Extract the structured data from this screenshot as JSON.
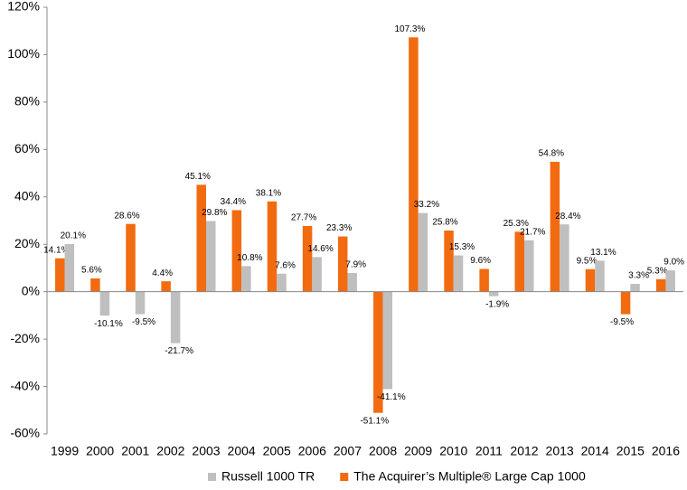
{
  "chart_data": {
    "type": "bar",
    "categories": [
      "1999",
      "2000",
      "2001",
      "2002",
      "2003",
      "2004",
      "2005",
      "2006",
      "2007",
      "2008",
      "2009",
      "2010",
      "2011",
      "2012",
      "2013",
      "2014",
      "2015",
      "2016"
    ],
    "series": [
      {
        "name": "The Acquirer’s Multiple® Large Cap 1000",
        "color": "#f26b10",
        "values": [
          14.1,
          5.6,
          28.6,
          4.4,
          45.1,
          34.4,
          38.1,
          27.7,
          23.3,
          -51.1,
          107.3,
          25.8,
          9.6,
          25.3,
          54.8,
          9.5,
          -9.5,
          5.3
        ],
        "value_labels": [
          "14.1%",
          "5.6%",
          "28.6%",
          "4.4%",
          "45.1%",
          "34.4%",
          "38.1%",
          "27.7%",
          "23.3%",
          "-51.1%",
          "107.3%",
          "25.8%",
          "9.6%",
          "25.3%",
          "54.8%",
          "9.5%",
          "-9.5%",
          "5.3%"
        ]
      },
      {
        "name": "Russell 1000 TR",
        "color": "#bfbfbf",
        "values": [
          20.1,
          -10.1,
          -9.5,
          -21.7,
          29.8,
          10.8,
          7.6,
          14.6,
          7.9,
          -41.1,
          33.2,
          15.3,
          -1.9,
          21.7,
          28.4,
          13.1,
          3.3,
          9.0
        ],
        "value_labels": [
          "20.1%",
          "-10.1%",
          "-9.5%",
          "-21.7%",
          "29.8%",
          "10.8%",
          "7.6%",
          "14.6%",
          "7.9%",
          "-41.1%",
          "33.2%",
          "15.3%",
          "-1.9%",
          "21.7%",
          "28.4%",
          "13.1%",
          "3.3%",
          "9.0%"
        ]
      }
    ],
    "legend_order": [
      1,
      0
    ],
    "ylim": [
      -60,
      120
    ],
    "yticks": [
      {
        "value": -60,
        "label": "-60%"
      },
      {
        "value": -40,
        "label": "-40%"
      },
      {
        "value": -20,
        "label": "-20%"
      },
      {
        "value": 0,
        "label": "0%"
      },
      {
        "value": 20,
        "label": "20%"
      },
      {
        "value": 40,
        "label": "40%"
      },
      {
        "value": 60,
        "label": "60%"
      },
      {
        "value": 80,
        "label": "80%"
      },
      {
        "value": 100,
        "label": "100%"
      },
      {
        "value": 120,
        "label": "120%"
      }
    ],
    "grid": false
  }
}
